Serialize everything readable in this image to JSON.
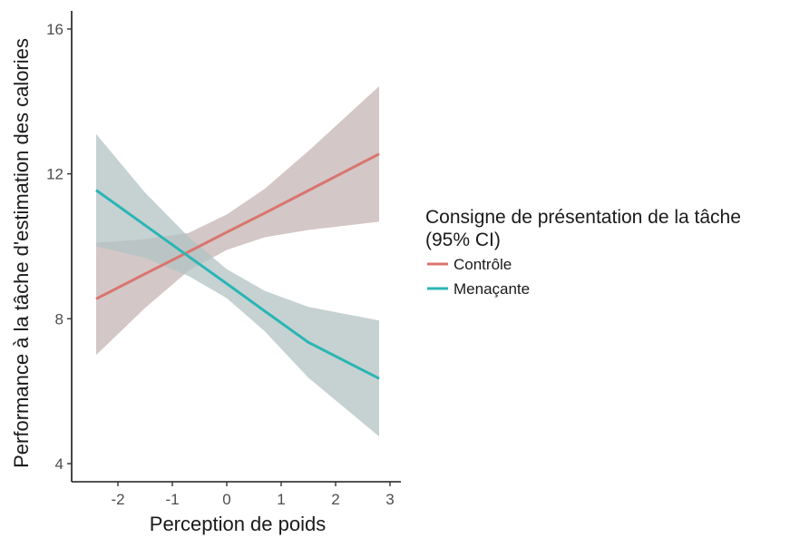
{
  "chart_data": {
    "type": "line",
    "title": "",
    "xlabel": "Perception de poids",
    "ylabel": "Performance à la tâche d'estimation des calories",
    "xlim": [
      -2.85,
      3.2
    ],
    "ylim": [
      3.5,
      16.5
    ],
    "x_ticks": [
      -2,
      -1,
      0,
      1,
      2,
      3
    ],
    "x_tick_labels": [
      "-2",
      "-1",
      "0",
      "1",
      "2",
      "3"
    ],
    "y_ticks": [
      4,
      8,
      12,
      16
    ],
    "y_tick_labels": [
      "4",
      "8",
      "12",
      "16"
    ],
    "grid": false,
    "legend": {
      "title_line1": "Consigne de présentation de la tâche",
      "title_line2": "(95% CI)",
      "position": "right"
    },
    "series": [
      {
        "name": "Contrôle",
        "color": "#d9756f",
        "band_color": "#c5b4b4",
        "x": [
          -2.4,
          -1.5,
          -0.7,
          0.0,
          0.7,
          1.5,
          2.8
        ],
        "y": [
          8.55,
          9.24,
          9.85,
          10.39,
          10.92,
          11.54,
          12.55
        ],
        "ci_low": [
          7.0,
          8.3,
          9.33,
          9.9,
          10.25,
          10.45,
          10.68
        ],
        "ci_high": [
          10.1,
          10.2,
          10.37,
          10.88,
          11.59,
          12.63,
          14.42
        ]
      },
      {
        "name": "Menaçante",
        "color": "#2bb5b5",
        "band_color": "#b3c3c3",
        "x": [
          -2.4,
          -1.5,
          -0.7,
          0.0,
          0.7,
          1.5,
          2.8
        ],
        "y": [
          11.55,
          10.58,
          9.72,
          8.97,
          8.21,
          7.35,
          6.35
        ],
        "ci_low": [
          10.0,
          9.68,
          9.18,
          8.57,
          7.65,
          6.37,
          4.75
        ],
        "ci_high": [
          13.1,
          11.48,
          10.26,
          9.37,
          8.77,
          8.33,
          7.95
        ]
      }
    ]
  }
}
